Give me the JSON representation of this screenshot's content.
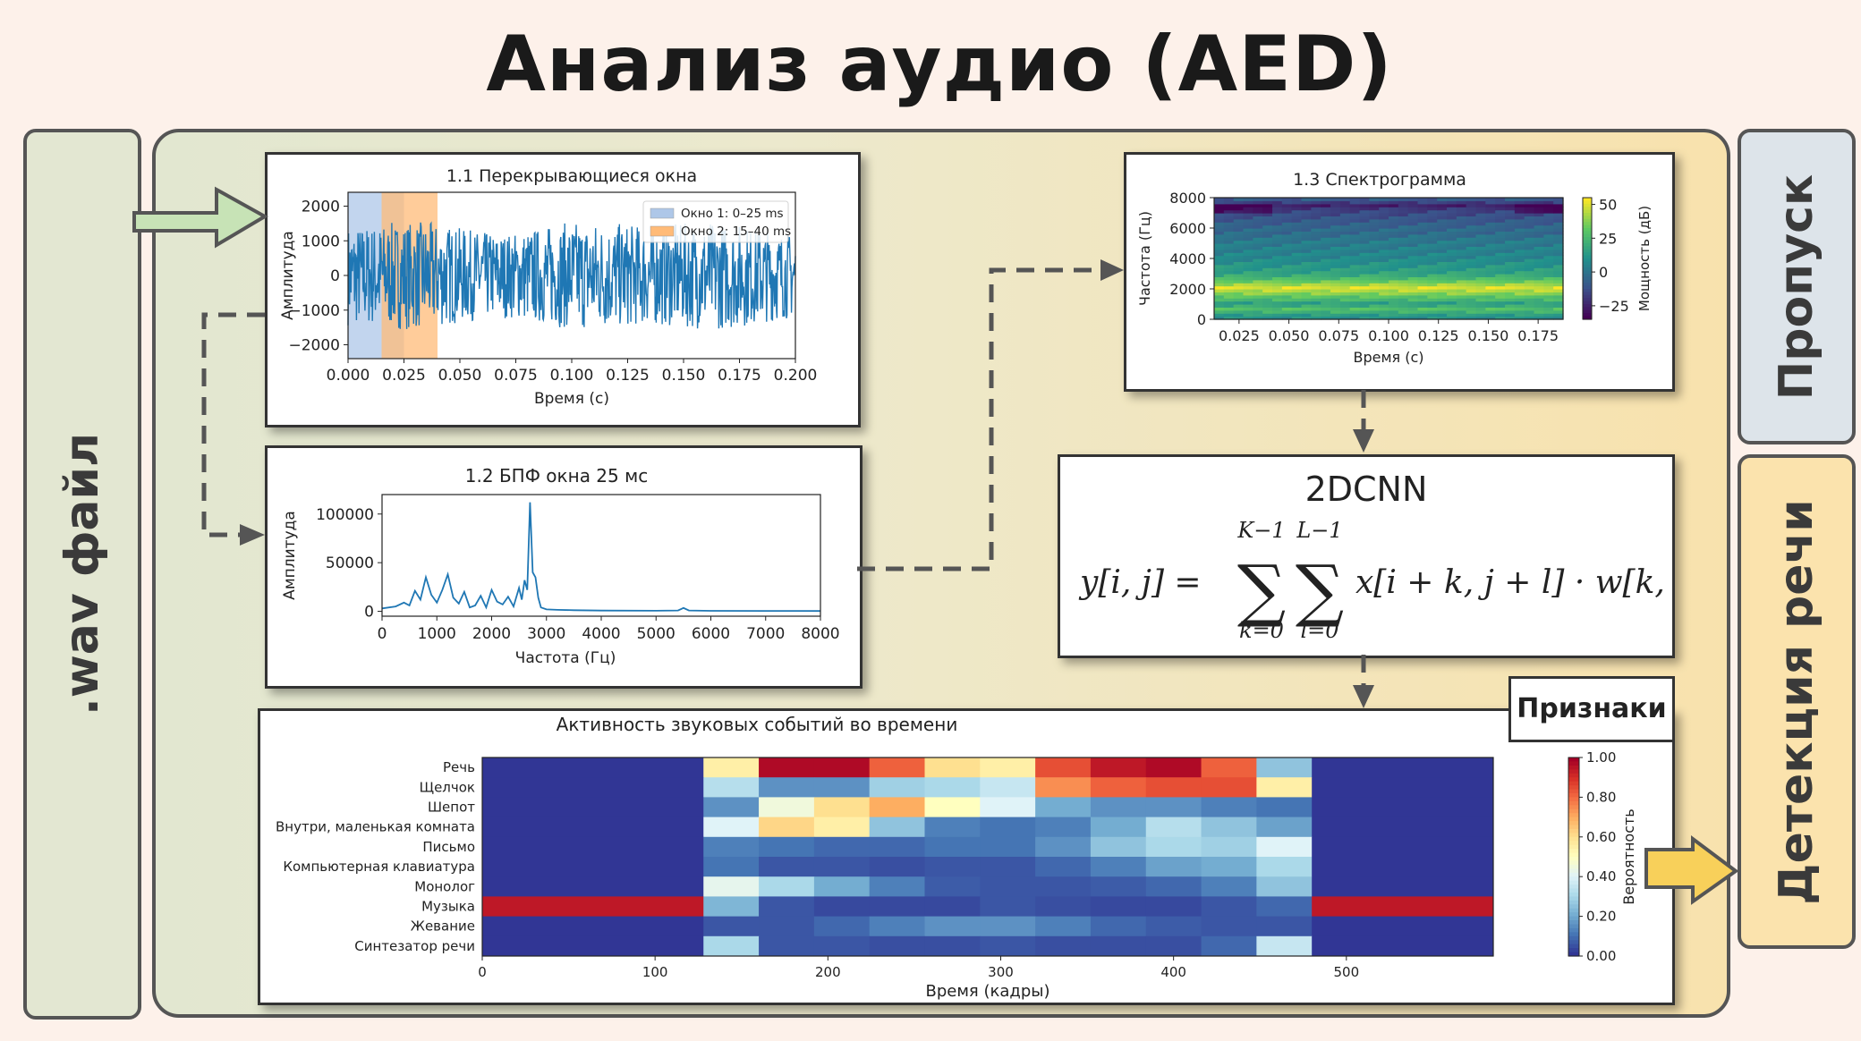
{
  "page_title": "Анализ аудио (AED)",
  "wav_label": ".wav файл",
  "skip_label": "Пропуск",
  "detection_label": "Детекция речи",
  "features_label": "Признаки",
  "cnn": {
    "title": "2DCNN",
    "formula_lhs": "y[i, j] =",
    "sum1_top": "K−1",
    "sum1_bottom": "k=0",
    "sum2_top": "L−1",
    "sum2_bottom": "l=0",
    "formula_rhs": "x[i + k, j + l] · w[k, l]"
  },
  "colors": {
    "signal": "#1f77b4",
    "window1": "#aec7e8",
    "window2": "#ffbb78",
    "input_arrow": "#c7e3b6",
    "output_arrow": "#f8d05a"
  },
  "chart_data": [
    {
      "type": "line",
      "title": "1.1 Перекрывающиеся окна",
      "xlabel": "Время (с)",
      "ylabel": "Амплитуда",
      "xlim": [
        0,
        0.2
      ],
      "ylim": [
        -2400,
        2400
      ],
      "xticks": [
        "0.000",
        "0.025",
        "0.050",
        "0.075",
        "0.100",
        "0.125",
        "0.150",
        "0.175",
        "0.200"
      ],
      "yticks": [
        "2000",
        "1000",
        "0",
        "−1000",
        "−2000"
      ],
      "signal_amplitude": 1500,
      "windows": [
        {
          "name": "Окно 1: 0–25 ms",
          "start": 0,
          "end": 0.025
        },
        {
          "name": "Окно 2: 15–40 ms",
          "start": 0.015,
          "end": 0.04
        }
      ],
      "legend_position": "top-right"
    },
    {
      "type": "line",
      "title": "1.2 БПФ окна 25 мс",
      "xlabel": "Частота (Гц)",
      "ylabel": "Амплитуда",
      "xlim": [
        0,
        8000
      ],
      "ylim": [
        -5000,
        120000
      ],
      "xticks": [
        "0",
        "1000",
        "2000",
        "3000",
        "4000",
        "5000",
        "6000",
        "7000",
        "8000"
      ],
      "yticks": [
        "100000",
        "50000",
        "0"
      ],
      "x": [
        0,
        250,
        400,
        500,
        600,
        700,
        800,
        900,
        1000,
        1100,
        1200,
        1300,
        1400,
        1500,
        1600,
        1700,
        1800,
        1900,
        2000,
        2100,
        2200,
        2300,
        2400,
        2500,
        2550,
        2600,
        2650,
        2700,
        2750,
        2800,
        2850,
        2900,
        3000,
        3200,
        3500,
        4000,
        5000,
        5400,
        5500,
        5600,
        6000,
        7000,
        8000
      ],
      "values": [
        3000,
        5000,
        9000,
        6000,
        21000,
        12000,
        35000,
        17000,
        9000,
        22000,
        38000,
        14000,
        8000,
        20000,
        4000,
        6000,
        16000,
        4000,
        22000,
        10000,
        7000,
        15000,
        5000,
        24000,
        12000,
        32000,
        22000,
        112000,
        40000,
        35000,
        14000,
        4000,
        2000,
        1500,
        1200,
        800,
        600,
        900,
        3500,
        900,
        500,
        400,
        300
      ]
    },
    {
      "type": "heatmap",
      "title": "1.3 Спектрограмма",
      "xlabel": "Время (с)",
      "ylabel": "Частота (Гц)",
      "colorbar_label": "Мощность (дБ)",
      "colorbar_ticks": [
        "50",
        "25",
        "0",
        "−25"
      ],
      "colorbar_range": [
        -35,
        55
      ],
      "xlim": [
        0.0125,
        0.1875
      ],
      "ylim": [
        0,
        8000
      ],
      "xticks": [
        "0.025",
        "0.050",
        "0.075",
        "0.100",
        "0.125",
        "0.150",
        "0.175"
      ],
      "yticks": [
        "8000",
        "6000",
        "4000",
        "2000",
        "0"
      ],
      "band_power_db": [
        10,
        14,
        22,
        28,
        20,
        16,
        25,
        30,
        38,
        44,
        50,
        42,
        34,
        26,
        20,
        16,
        14,
        12,
        10,
        8,
        6,
        6,
        4,
        4,
        2,
        2,
        0,
        -2,
        -4,
        -4,
        -6,
        -8,
        -10,
        -12,
        -14,
        -16,
        -20,
        -26,
        -18,
        -10
      ]
    },
    {
      "type": "heatmap",
      "title": "Активность звуковых событий во времени",
      "xlabel": "Время (кадры)",
      "ylabel": "",
      "colorbar_label": "Вероятность",
      "colorbar_ticks": [
        "1.00",
        "0.80",
        "0.60",
        "0.40",
        "0.20",
        "0.00"
      ],
      "x_edges": [
        0,
        128,
        160,
        192,
        224,
        256,
        288,
        320,
        352,
        384,
        416,
        448,
        480,
        585
      ],
      "xlim": [
        0,
        585
      ],
      "xticks": [
        "0",
        "100",
        "200",
        "300",
        "400",
        "500"
      ],
      "categories": [
        "Речь",
        "Щелчок",
        "Шепот",
        "Внутри, маленькая комната",
        "Письмо",
        "Компьютерная клавиатура",
        "Монолог",
        "Музыка",
        "Жевание",
        "Синтезатор речи"
      ],
      "values": [
        [
          0.0,
          0.55,
          0.98,
          0.98,
          0.82,
          0.6,
          0.55,
          0.85,
          0.95,
          0.98,
          0.82,
          0.25,
          0.0
        ],
        [
          0.0,
          0.32,
          0.15,
          0.15,
          0.28,
          0.3,
          0.35,
          0.75,
          0.82,
          0.85,
          0.85,
          0.55,
          0.0
        ],
        [
          0.0,
          0.15,
          0.45,
          0.6,
          0.7,
          0.5,
          0.4,
          0.2,
          0.15,
          0.15,
          0.12,
          0.1,
          0.0
        ],
        [
          0.0,
          0.4,
          0.62,
          0.55,
          0.25,
          0.12,
          0.1,
          0.12,
          0.2,
          0.32,
          0.25,
          0.18,
          0.0
        ],
        [
          0.0,
          0.12,
          0.1,
          0.08,
          0.08,
          0.1,
          0.1,
          0.15,
          0.25,
          0.3,
          0.28,
          0.4,
          0.0
        ],
        [
          0.0,
          0.1,
          0.05,
          0.05,
          0.04,
          0.05,
          0.05,
          0.08,
          0.12,
          0.18,
          0.2,
          0.3,
          0.0
        ],
        [
          0.0,
          0.42,
          0.3,
          0.2,
          0.12,
          0.06,
          0.05,
          0.05,
          0.06,
          0.08,
          0.12,
          0.25,
          0.0
        ],
        [
          0.95,
          0.22,
          0.05,
          0.03,
          0.03,
          0.03,
          0.05,
          0.04,
          0.03,
          0.03,
          0.05,
          0.08,
          0.95
        ],
        [
          0.0,
          0.05,
          0.05,
          0.08,
          0.12,
          0.15,
          0.15,
          0.12,
          0.08,
          0.06,
          0.05,
          0.05,
          0.0
        ],
        [
          0.0,
          0.3,
          0.05,
          0.05,
          0.04,
          0.04,
          0.05,
          0.04,
          0.04,
          0.04,
          0.08,
          0.35,
          0.0
        ]
      ]
    }
  ]
}
